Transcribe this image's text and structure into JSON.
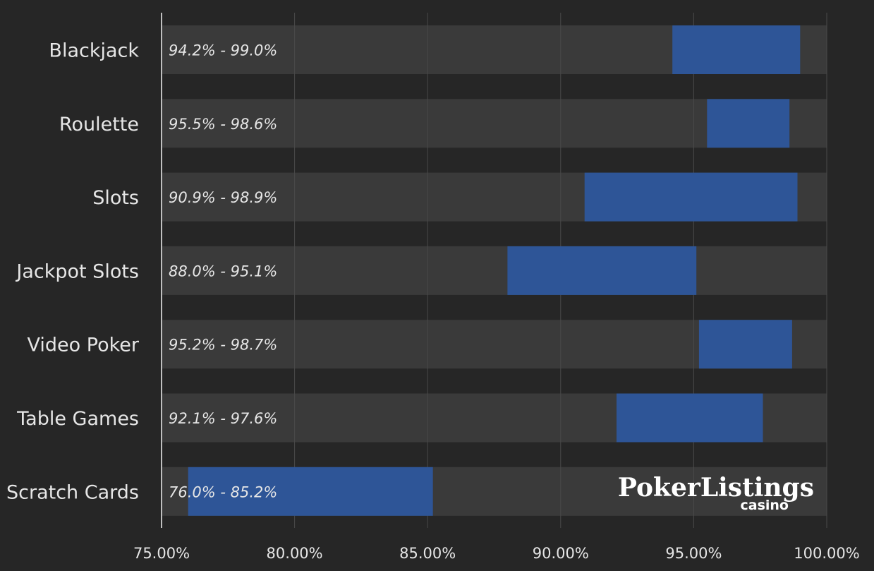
{
  "chart_data": {
    "type": "bar",
    "orientation": "horizontal",
    "title": "",
    "xlabel": "",
    "ylabel": "",
    "xlim": [
      75,
      100
    ],
    "x_ticks": [
      75,
      80,
      85,
      90,
      95,
      100
    ],
    "x_tick_labels": [
      "75.00%",
      "80.00%",
      "85.00%",
      "90.00%",
      "95.00%",
      "100.00%"
    ],
    "grid": true,
    "legend": "none",
    "categories": [
      "Blackjack",
      "Roulette",
      "Slots",
      "Jackpot Slots",
      "Video Poker",
      "Table Games",
      "Scratch Cards"
    ],
    "ranges": [
      {
        "low": 94.2,
        "high": 99.0,
        "label": "94.2% - 99.0%"
      },
      {
        "low": 95.5,
        "high": 98.6,
        "label": "95.5% - 98.6%"
      },
      {
        "low": 90.9,
        "high": 98.9,
        "label": "90.9% - 98.9%"
      },
      {
        "low": 88.0,
        "high": 95.1,
        "label": "88.0% - 95.1%"
      },
      {
        "low": 95.2,
        "high": 98.7,
        "label": "95.2% - 98.7%"
      },
      {
        "low": 92.1,
        "high": 97.6,
        "label": "92.1% - 97.6%"
      },
      {
        "low": 76.0,
        "high": 85.2,
        "label": "76.0% - 85.2%"
      }
    ],
    "colors": {
      "background": "#262626",
      "track": "#3a3a3a",
      "bar": "#2e5597",
      "grid": "#4a4a4a",
      "axis": "#bfbfbf",
      "text": "#e6e6e6"
    }
  },
  "logo": {
    "main": "PokerListings",
    "sub": "casino"
  }
}
